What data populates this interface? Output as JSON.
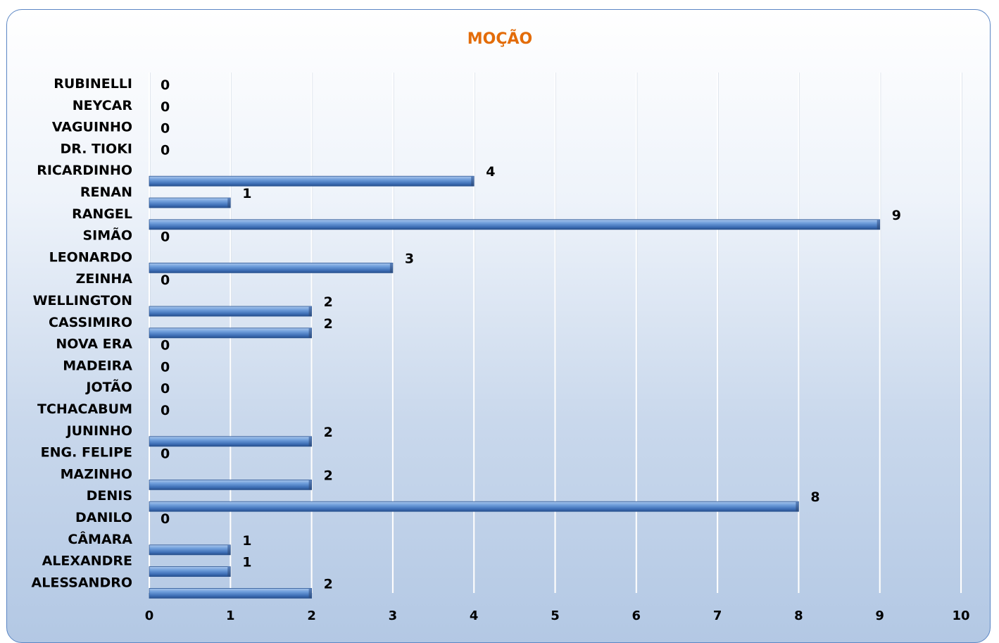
{
  "chart_data": {
    "type": "bar",
    "orientation": "horizontal",
    "title": "MOÇÃO",
    "title_color": "#e36c09",
    "bar_color": "#4f81bd",
    "categories": [
      "RUBINELLI",
      "NEYCAR",
      "VAGUINHO",
      "DR. TIOKI",
      "RICARDINHO",
      "RENAN",
      "RANGEL",
      "SIMÃO",
      "LEONARDO",
      "ZEINHA",
      "WELLINGTON",
      "CASSIMIRO",
      "NOVA ERA",
      "MADEIRA",
      "JOTÃO",
      "TCHACABUM",
      "JUNINHO",
      "ENG. FELIPE",
      "MAZINHO",
      "DENIS",
      "DANILO",
      "CÂMARA",
      "ALEXANDRE",
      "ALESSANDRO"
    ],
    "values": [
      0,
      0,
      0,
      0,
      4,
      1,
      9,
      0,
      3,
      0,
      2,
      2,
      0,
      0,
      0,
      0,
      2,
      0,
      2,
      8,
      0,
      1,
      1,
      2
    ],
    "xlim": [
      0,
      10
    ],
    "xticks": [
      "0",
      "1",
      "2",
      "3",
      "4",
      "5",
      "6",
      "7",
      "8",
      "9",
      "10"
    ],
    "grid": true,
    "legend": "none"
  }
}
